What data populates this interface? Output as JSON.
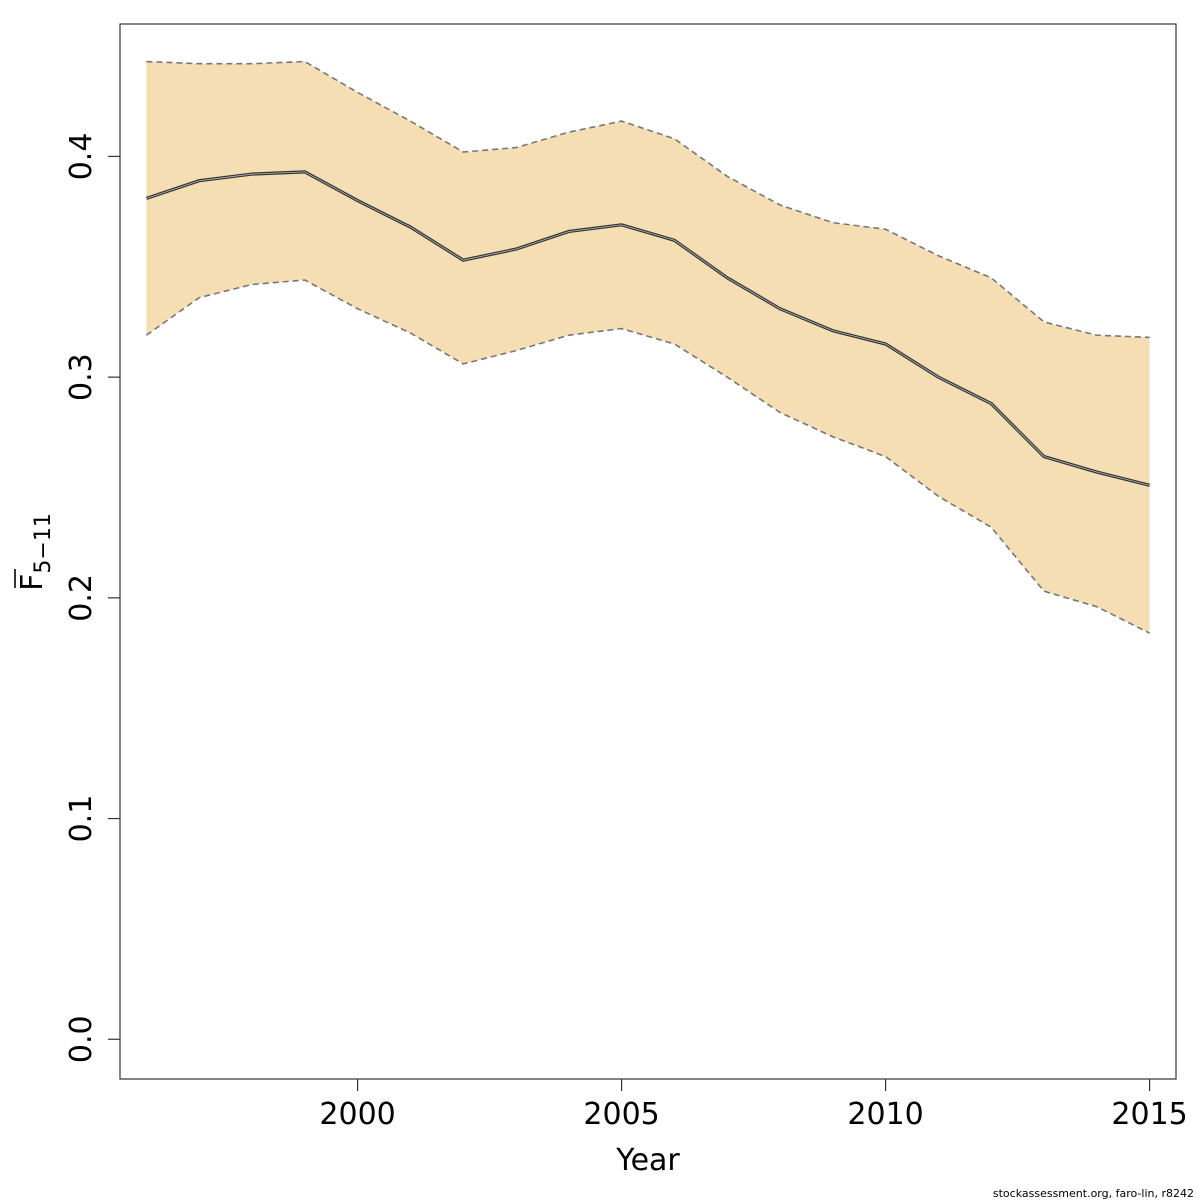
{
  "chart_data": {
    "type": "area",
    "xlabel": "Year",
    "ylabel": {
      "main": "F",
      "subscript": "5−11"
    },
    "xlim": [
      1995.5,
      2015.5
    ],
    "ylim": [
      -0.018,
      0.46
    ],
    "x_ticks": [
      2000,
      2005,
      2010,
      2015
    ],
    "x_tick_labels": [
      "2000",
      "2005",
      "2010",
      "2015"
    ],
    "y_ticks": [
      0.0,
      0.1,
      0.2,
      0.3,
      0.4
    ],
    "y_tick_labels": [
      "0.0",
      "0.1",
      "0.2",
      "0.3",
      "0.4"
    ],
    "grid": false,
    "colors": {
      "band_fill": "#F5DEB3",
      "estimate_line": "#333333",
      "bound_line": "#777777",
      "axis": "#333333"
    },
    "series": [
      {
        "x": [
          1996,
          1997,
          1998,
          1999,
          2000,
          2001,
          2002,
          2003,
          2004,
          2005,
          2006,
          2007,
          2008,
          2009,
          2010,
          2011,
          2012,
          2013,
          2014,
          2015
        ],
        "values": [
          0.381,
          0.389,
          0.392,
          0.393,
          0.38,
          0.368,
          0.353,
          0.358,
          0.366,
          0.369,
          0.362,
          0.345,
          0.331,
          0.321,
          0.315,
          0.3,
          0.288,
          0.264,
          0.257,
          0.251
        ],
        "lower": [
          0.319,
          0.336,
          0.342,
          0.344,
          0.331,
          0.32,
          0.306,
          0.312,
          0.319,
          0.322,
          0.315,
          0.3,
          0.284,
          0.273,
          0.264,
          0.246,
          0.232,
          0.203,
          0.196,
          0.184
        ],
        "upper": [
          0.443,
          0.442,
          0.442,
          0.443,
          0.429,
          0.416,
          0.402,
          0.404,
          0.411,
          0.416,
          0.408,
          0.391,
          0.378,
          0.37,
          0.367,
          0.355,
          0.345,
          0.325,
          0.319,
          0.318
        ]
      }
    ]
  },
  "footer": "stockassessment.org, faro-lin, r8242"
}
